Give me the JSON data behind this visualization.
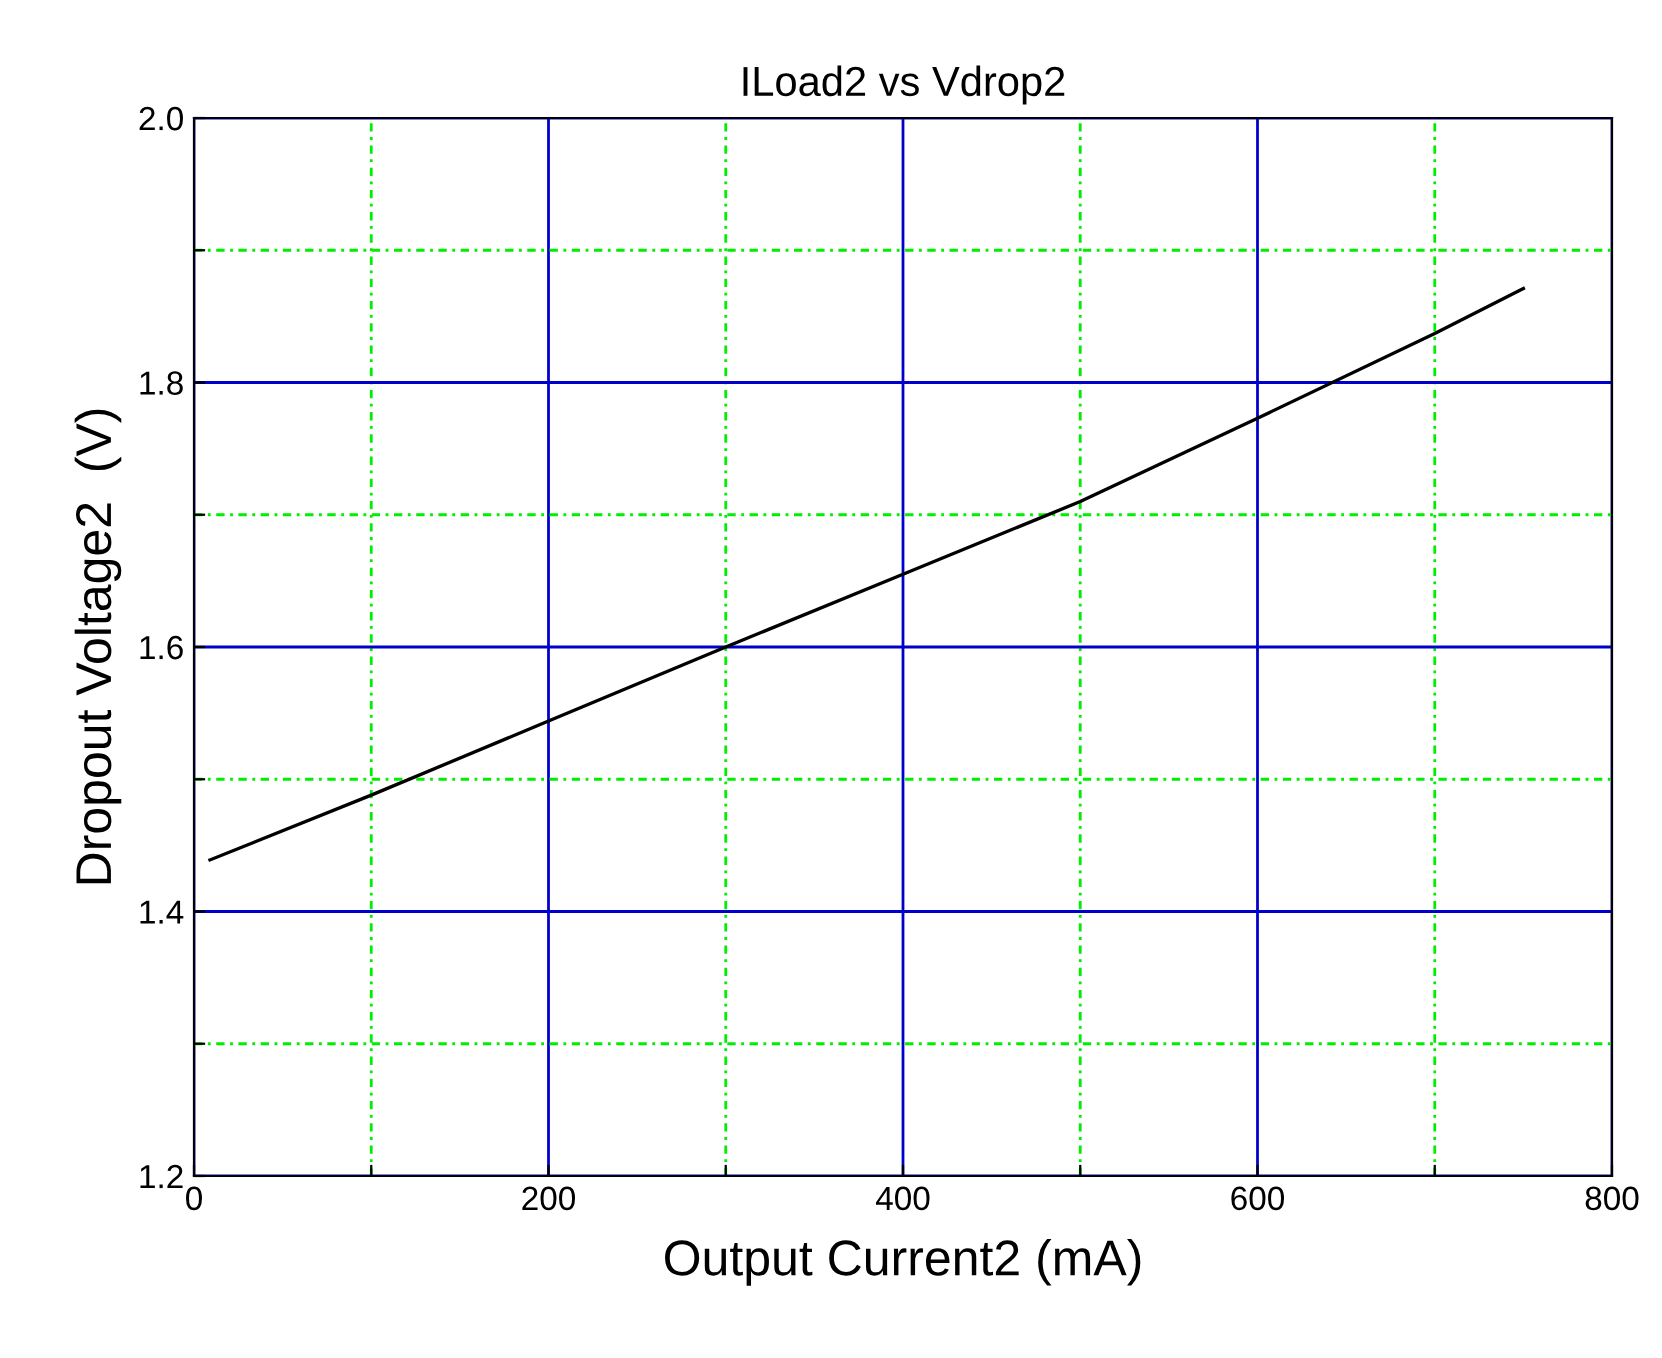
{
  "chart_data": {
    "type": "line",
    "title": "ILoad2 vs Vdrop2",
    "xlabel": "Output Current2 (mA)",
    "ylabel": "Dropout Voltage2  (V)",
    "x": [
      9,
      100,
      200,
      300,
      400,
      500,
      600,
      700,
      750
    ],
    "series": [
      {
        "color": "#000000",
        "values": [
          1.439,
          1.488,
          1.544,
          1.6,
          1.655,
          1.71,
          1.773,
          1.837,
          1.871
        ]
      }
    ],
    "xlim": [
      0,
      800
    ],
    "ylim": [
      1.2,
      2.0
    ],
    "xticks": [
      0,
      {
        "value": 100,
        "label": null
      },
      200,
      {
        "value": 300,
        "label": null
      },
      400,
      {
        "value": 500,
        "label": null
      },
      600,
      {
        "value": 700,
        "label": null
      },
      800
    ],
    "yticks": [
      1.2,
      {
        "value": 1.3,
        "label": null
      },
      1.4,
      {
        "value": 1.5,
        "label": null
      },
      1.6,
      {
        "value": 1.7,
        "label": null
      },
      1.8,
      {
        "value": 1.9,
        "label": null
      },
      {
        "value": 2,
        "label": "2.0"
      }
    ],
    "grid": true,
    "marker": "none",
    "line_style": "solid",
    "legend": false
  }
}
